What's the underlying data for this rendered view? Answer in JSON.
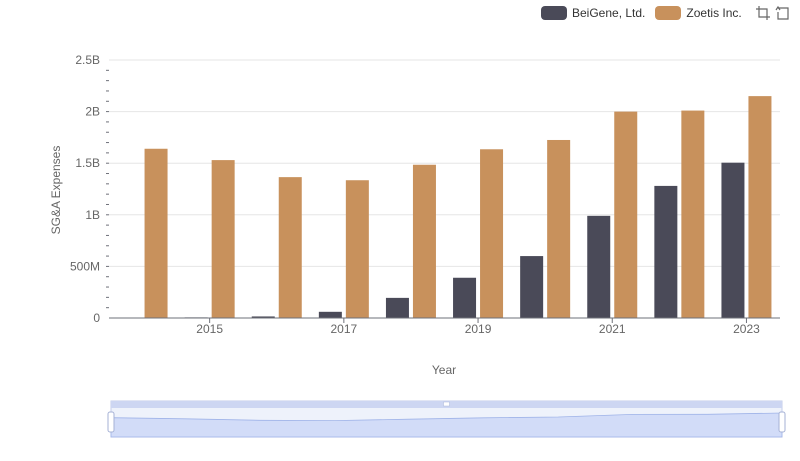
{
  "chart_data": {
    "type": "bar",
    "categories": [
      "2014",
      "2015",
      "2016",
      "2017",
      "2018",
      "2019",
      "2020",
      "2021",
      "2022",
      "2023"
    ],
    "xtick_labels": [
      "2015",
      "2017",
      "2019",
      "2021",
      "2023"
    ],
    "series": [
      {
        "name": "BeiGene, Ltd.",
        "color": "#4a4a58",
        "values": [
          0.003,
          0.006,
          0.015,
          0.06,
          0.195,
          0.39,
          0.6,
          0.99,
          1.28,
          1.505
        ]
      },
      {
        "name": "Zoetis Inc.",
        "color": "#c8915c",
        "values": [
          1.64,
          1.53,
          1.365,
          1.335,
          1.485,
          1.635,
          1.725,
          2.0,
          2.01,
          2.15
        ]
      }
    ],
    "xlabel": "Year",
    "ylabel": "SG&A Expenses",
    "ylim": [
      0,
      2.5
    ],
    "yticks": [
      {
        "value": 0,
        "label": "0"
      },
      {
        "value": 0.5,
        "label": "500M"
      },
      {
        "value": 1.0,
        "label": "1B"
      },
      {
        "value": 1.5,
        "label": "1.5B"
      },
      {
        "value": 2.0,
        "label": "2B"
      },
      {
        "value": 2.5,
        "label": "2.5B"
      }
    ],
    "grid": true,
    "legend_position": "top-right"
  },
  "toolbox": {
    "icons": [
      "zoom-icon",
      "restore-icon"
    ]
  },
  "colors": {
    "grid": "#e6e6e6",
    "axis": "#6e7079",
    "slider_fill": "#d2dcf8",
    "slider_border": "#c5cee8"
  }
}
